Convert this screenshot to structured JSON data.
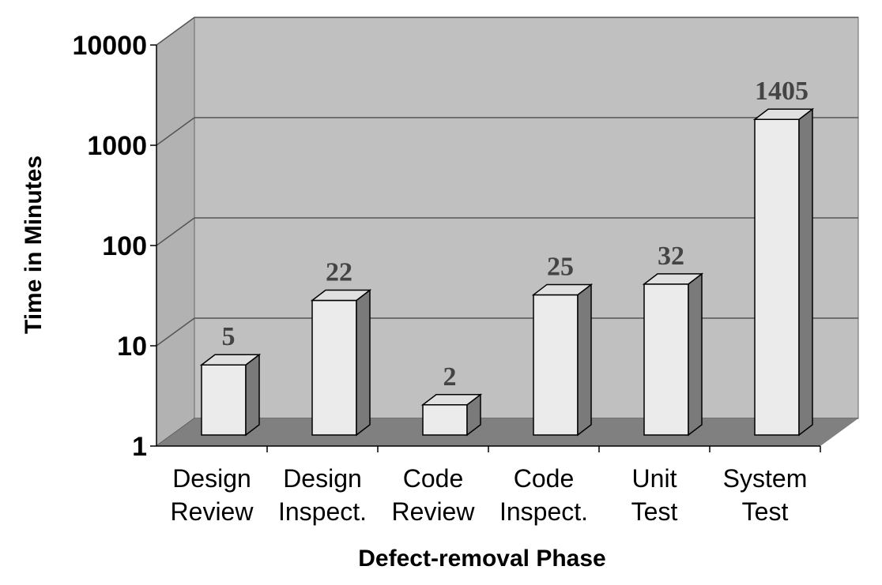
{
  "chart_data": {
    "type": "bar",
    "title": "",
    "xlabel": "Defect-removal Phase",
    "ylabel": "Time in Minutes",
    "y_scale": "log",
    "ylim": [
      1,
      10000
    ],
    "y_ticks": [
      "1",
      "10",
      "100",
      "1000",
      "10000"
    ],
    "categories": [
      [
        "Design",
        "Review"
      ],
      [
        "Design",
        "Inspect."
      ],
      [
        "Code",
        "Review"
      ],
      [
        "Code",
        "Inspect."
      ],
      [
        "Unit",
        "Test"
      ],
      [
        "System",
        "Test"
      ]
    ],
    "values": [
      5,
      22,
      2,
      25,
      32,
      1405
    ],
    "data_labels": [
      "5",
      "22",
      "2",
      "25",
      "32",
      "1405"
    ],
    "grid": true,
    "legend": "none",
    "style": "3d",
    "colors": {
      "wall": "#c0c0c0",
      "wall_side": "#b2b2b2",
      "floor": "#808080",
      "bar_front": "#ebebeb",
      "bar_top": "#e0e0e0",
      "bar_side": "#7a7a7a",
      "grid": "#555555"
    }
  }
}
